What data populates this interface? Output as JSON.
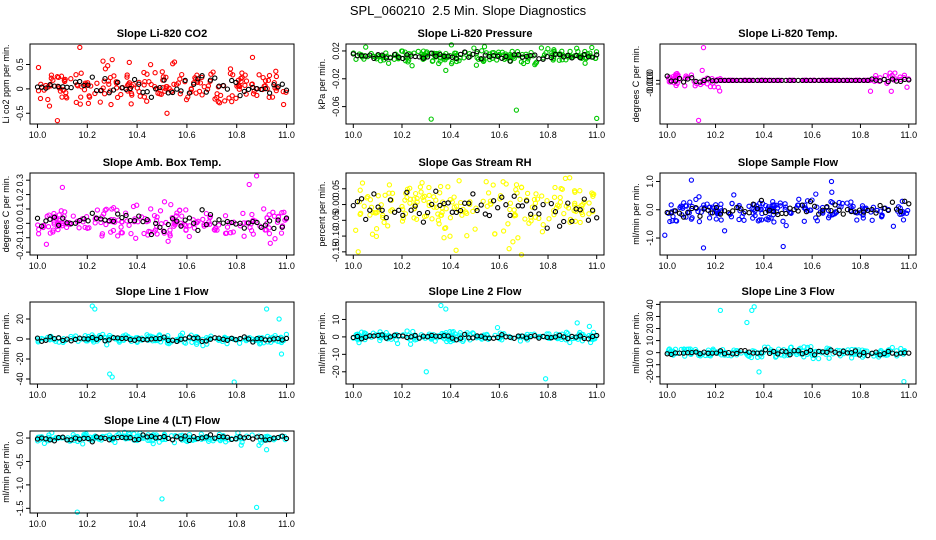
{
  "figure": {
    "title": "SPL_060210  2.5 Min. Slope Diagnostics"
  },
  "chart_data": [
    {
      "type": "scatter",
      "title": "Slope Li-820 CO2",
      "ylabel": "Li co2 ppm per min.",
      "xlim": [
        9.97,
        11.03
      ],
      "ylim": [
        -0.72,
        0.92
      ],
      "xticks": [
        "10.0",
        "10.2",
        "10.4",
        "10.6",
        "10.8",
        "11.0"
      ],
      "yticks": [
        "0.5",
        "0",
        "-0.5"
      ],
      "ytick_values": [
        0.5,
        0,
        -0.5
      ],
      "color": "#ff0000",
      "center": 0.05,
      "spread": 0.2,
      "outliers": {
        "x": [
          10.08,
          10.17,
          10.3,
          10.55,
          10.52
        ],
        "y": [
          -0.65,
          0.85,
          0.6,
          0.55,
          -0.5
        ]
      }
    },
    {
      "type": "scatter",
      "title": "Slope Li-820 Pressure",
      "ylabel": "kPa per min.",
      "xlim": [
        9.97,
        11.03
      ],
      "ylim": [
        -0.085,
        0.03
      ],
      "xticks": [
        "10.0",
        "10.2",
        "10.4",
        "10.6",
        "10.8",
        "11.0"
      ],
      "yticks": [
        "0.02",
        "-0.02",
        "-0.06"
      ],
      "ytick_values": [
        0.02,
        -0.02,
        -0.06
      ],
      "color": "#00c800",
      "center": 0.012,
      "spread": 0.005,
      "outliers": {
        "x": [
          10.32,
          10.67,
          11.0,
          10.38,
          10.98
        ],
        "y": [
          -0.078,
          -0.065,
          -0.077,
          -0.008,
          0.025
        ]
      }
    },
    {
      "type": "scatter",
      "title": "Slope Li-820 Temp.",
      "ylabel": "degrees C per min.",
      "xlim": [
        9.97,
        11.03
      ],
      "ylim": [
        -0.12,
        0.1
      ],
      "xticks": [
        "10.0",
        "10.2",
        "10.4",
        "10.6",
        "10.8",
        "11.0"
      ],
      "yticks": [
        "0.000",
        "-0.010"
      ],
      "ytick_values": [
        0.0,
        -0.01
      ],
      "color": "#ff00ff",
      "center": 0.0,
      "spread": 0.0,
      "regime": "temp",
      "outliers": {
        "x": [
          10.13,
          10.15
        ],
        "y": [
          -0.11,
          0.09
        ]
      }
    },
    {
      "type": "scatter",
      "title": "Slope Amb. Box Temp.",
      "ylabel": "degrees C per min.",
      "xlim": [
        9.97,
        11.03
      ],
      "ylim": [
        -0.22,
        0.35
      ],
      "xticks": [
        "10.0",
        "10.2",
        "10.4",
        "10.6",
        "10.8",
        "11.0"
      ],
      "yticks": [
        "0.3",
        "0.2",
        "0.1",
        "0.0",
        "-0.1",
        "-0.2"
      ],
      "ytick_values": [
        0.3,
        0.2,
        0.1,
        0.0,
        -0.1,
        -0.2
      ],
      "color": "#ff00ff",
      "center": 0.0,
      "spread": 0.06,
      "outliers": {
        "x": [
          10.88,
          10.85,
          10.1
        ],
        "y": [
          0.33,
          0.27,
          0.25
        ]
      }
    },
    {
      "type": "scatter",
      "title": "Slope Gas Stream RH",
      "ylabel": "percent per min.",
      "xlim": [
        9.97,
        11.03
      ],
      "ylim": [
        -0.16,
        0.1
      ],
      "xticks": [
        "10.0",
        "10.2",
        "10.4",
        "10.6",
        "10.8",
        "11.0"
      ],
      "yticks": [
        "0.05",
        "0.00",
        "-0.05",
        "-0.10",
        "-0.15"
      ],
      "ytick_values": [
        0.05,
        0.0,
        -0.05,
        -0.1,
        -0.15
      ],
      "color": "#ffff00",
      "center": -0.01,
      "spread": 0.045,
      "outliers": {
        "x": [
          10.02,
          10.64
        ],
        "y": [
          -0.15,
          -0.14
        ]
      }
    },
    {
      "type": "scatter",
      "title": "Slope Sample Flow",
      "ylabel": "ml/min per min.",
      "xlim": [
        9.97,
        11.03
      ],
      "ylim": [
        -1.6,
        1.3
      ],
      "xticks": [
        "10.0",
        "10.2",
        "10.4",
        "10.6",
        "10.8",
        "11.0"
      ],
      "yticks": [
        "1.0",
        "0.0",
        "-1.0"
      ],
      "ytick_values": [
        1.0,
        0.0,
        -1.0
      ],
      "color": "#0000ff",
      "center": 0.0,
      "spread": 0.22,
      "outliers": {
        "x": [
          10.1,
          10.68,
          10.15,
          10.48,
          9.99
        ],
        "y": [
          1.05,
          1.0,
          -1.35,
          -1.3,
          -0.9
        ]
      }
    },
    {
      "type": "scatter",
      "title": "Slope Line 1 Flow",
      "ylabel": "ml/min per min.",
      "xlim": [
        9.97,
        11.03
      ],
      "ylim": [
        -45,
        37
      ],
      "xticks": [
        "10.0",
        "10.2",
        "10.4",
        "10.6",
        "10.8",
        "11.0"
      ],
      "yticks": [
        "20",
        "0",
        "-20",
        "-40"
      ],
      "ytick_values": [
        20,
        0,
        -20,
        -40
      ],
      "color": "#00ffff",
      "center": 0.0,
      "spread": 2.2,
      "outliers": {
        "x": [
          10.22,
          10.23,
          10.29,
          10.3,
          10.79,
          10.92,
          10.97,
          10.98
        ],
        "y": [
          33,
          30,
          -35,
          -38,
          -43,
          30,
          20,
          -15
        ]
      }
    },
    {
      "type": "scatter",
      "title": "Slope Line 2 Flow",
      "ylabel": "ml/min per min.",
      "xlim": [
        9.97,
        11.03
      ],
      "ylim": [
        -27,
        20
      ],
      "xticks": [
        "10.0",
        "10.2",
        "10.4",
        "10.6",
        "10.8",
        "11.0"
      ],
      "yticks": [
        "10",
        "0",
        "-10",
        "-20"
      ],
      "ytick_values": [
        10,
        0,
        -10,
        -20
      ],
      "color": "#00ffff",
      "center": 0.0,
      "spread": 1.5,
      "outliers": {
        "x": [
          10.3,
          10.36,
          10.38,
          10.79,
          10.92,
          10.97
        ],
        "y": [
          -20,
          18,
          16,
          -24,
          8,
          6
        ]
      }
    },
    {
      "type": "scatter",
      "title": "Slope Line 3 Flow",
      "ylabel": "ml/min per min.",
      "xlim": [
        9.97,
        11.03
      ],
      "ylim": [
        -26,
        42
      ],
      "xticks": [
        "10.0",
        "10.2",
        "10.4",
        "10.6",
        "10.8",
        "11.0"
      ],
      "yticks": [
        "40",
        "30",
        "20",
        "10",
        "0",
        "-10",
        "-20"
      ],
      "ytick_values": [
        40,
        30,
        20,
        10,
        0,
        -10,
        -20
      ],
      "color": "#00ffff",
      "center": 0.0,
      "spread": 2.0,
      "outliers": {
        "x": [
          10.22,
          10.33,
          10.35,
          10.36,
          10.38,
          10.98
        ],
        "y": [
          35,
          25,
          35,
          38,
          -16,
          -24
        ]
      }
    },
    {
      "type": "scatter",
      "title": "Slope Line 4 (LT) Flow",
      "ylabel": "ml/min per min.",
      "xlim": [
        9.97,
        11.03
      ],
      "ylim": [
        -1.6,
        0.15
      ],
      "xticks": [
        "10.0",
        "10.2",
        "10.4",
        "10.6",
        "10.8",
        "11.0"
      ],
      "yticks": [
        "0.0",
        "-0.5",
        "-1.0",
        "-1.5"
      ],
      "ytick_values": [
        0.0,
        -0.5,
        -1.0,
        -1.5
      ],
      "color": "#00ffff",
      "center": 0.0,
      "spread": 0.05,
      "outliers": {
        "x": [
          10.16,
          10.35,
          10.5,
          10.88,
          10.92
        ],
        "y": [
          -1.58,
          0.12,
          -1.3,
          -1.48,
          -0.25
        ]
      }
    }
  ]
}
